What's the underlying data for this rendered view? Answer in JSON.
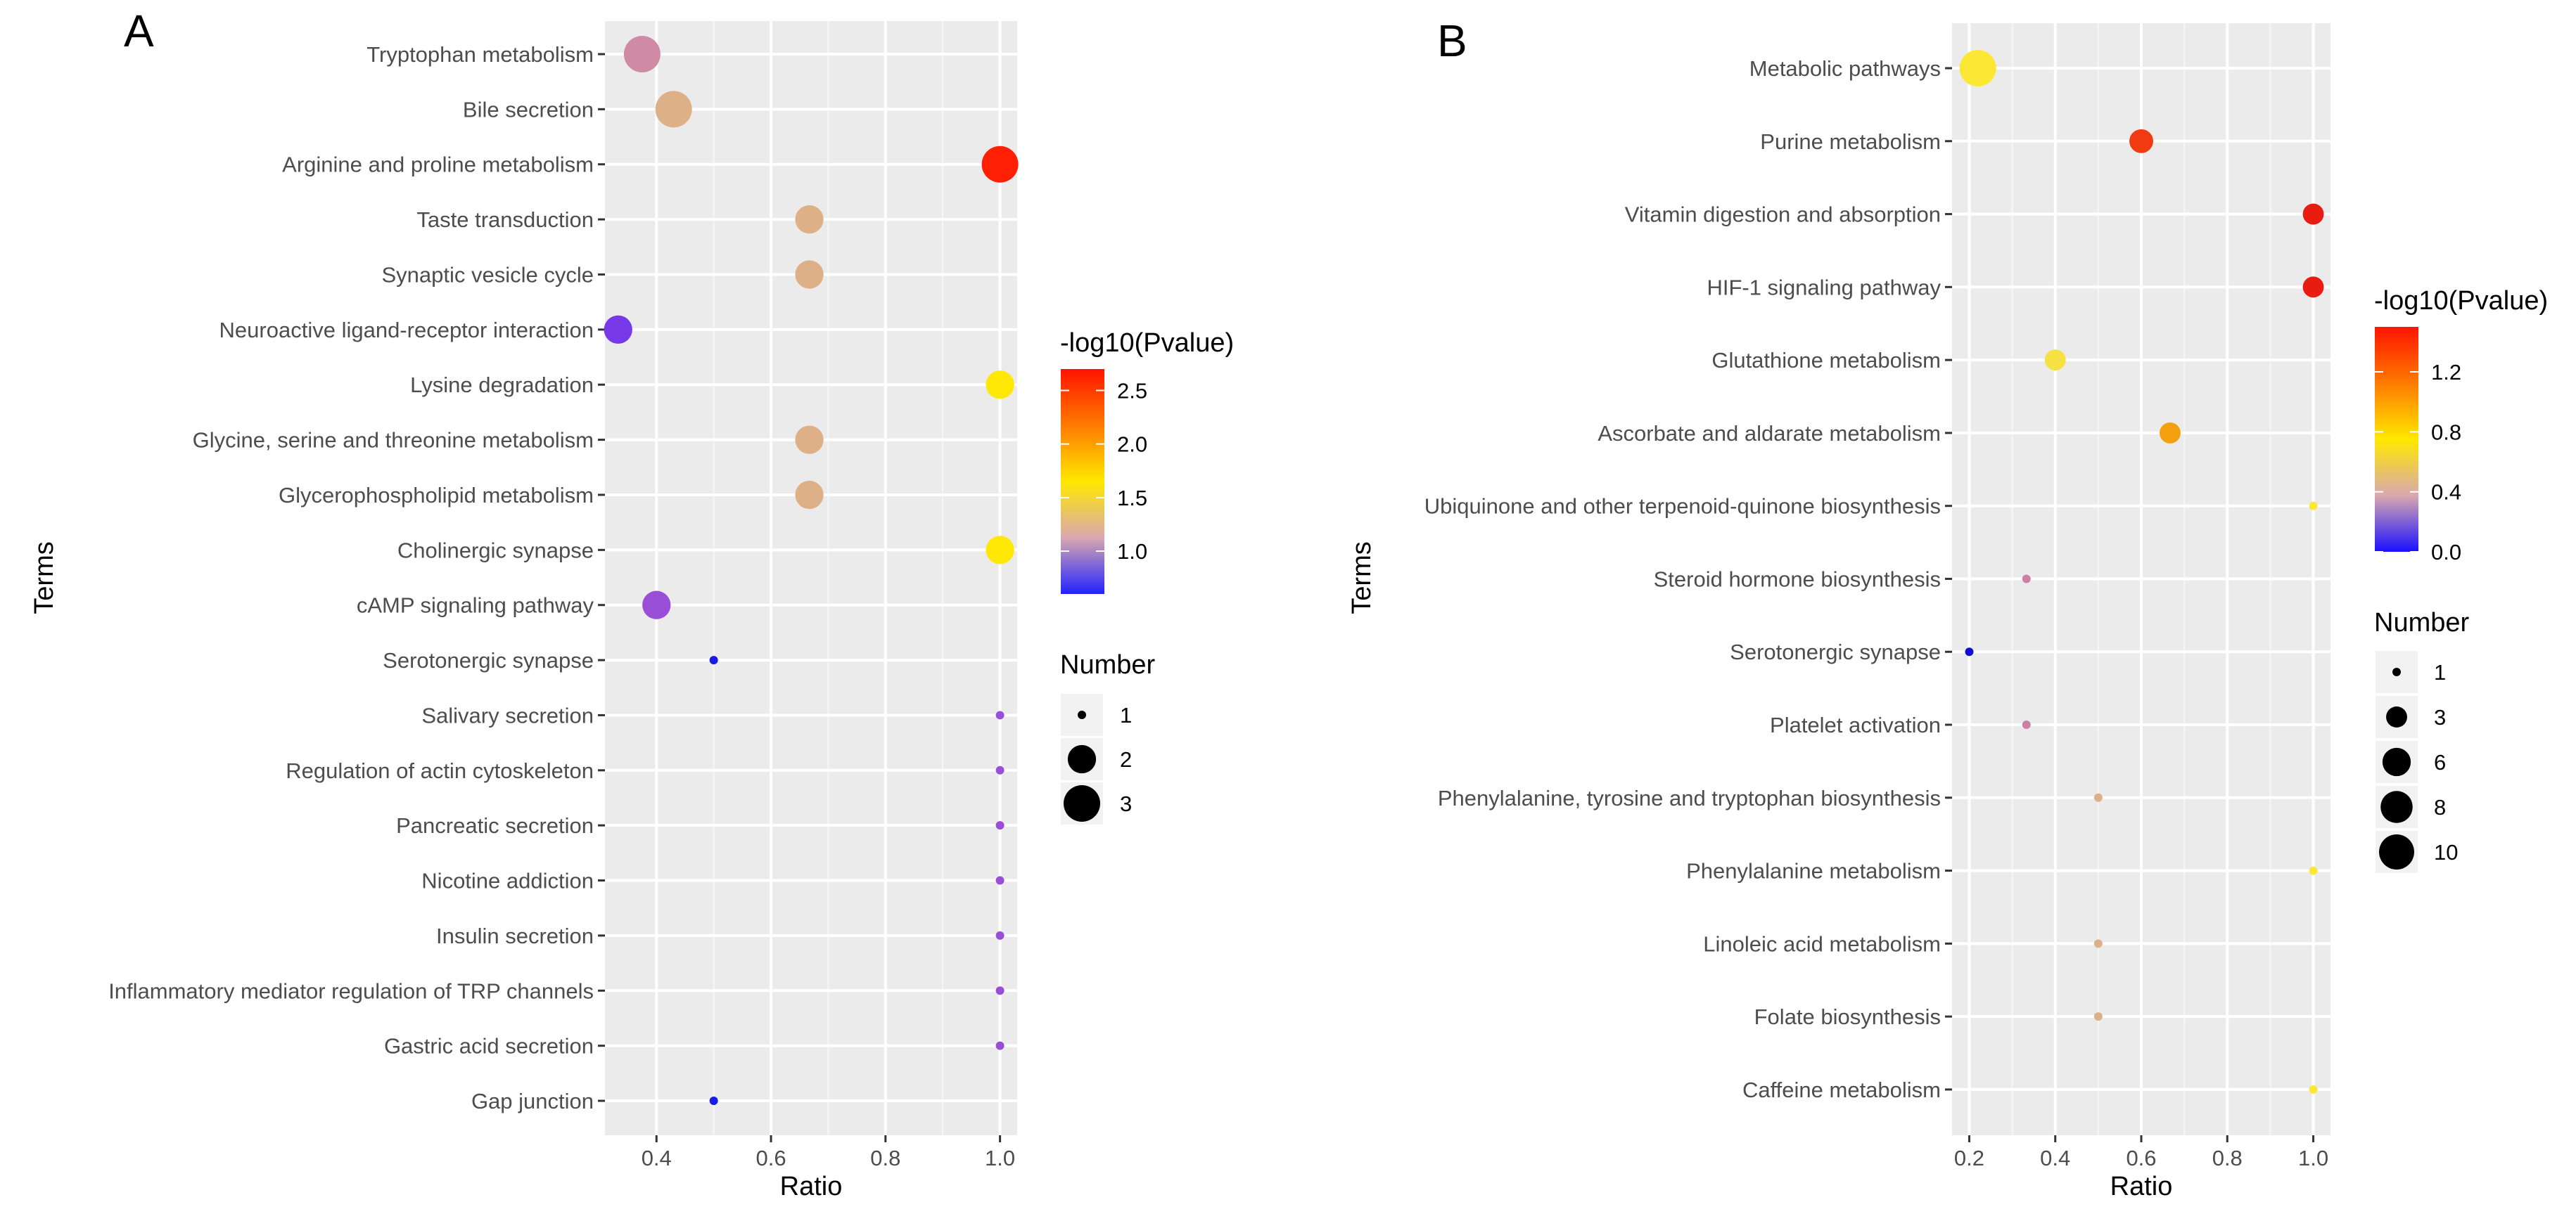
{
  "chart_data": [
    {
      "type": "scatter",
      "panel_label": "A",
      "xlabel": "Ratio",
      "ylabel": "Terms",
      "xlim": [
        0.31,
        1.03
      ],
      "xticks": [
        0.4,
        0.6,
        0.8,
        1.0
      ],
      "xtick_labels": [
        "0.4",
        "0.6",
        "0.8",
        "1.0"
      ],
      "grid": true,
      "legend_position": "right",
      "color_legend": {
        "title": "-log10(Pvalue)",
        "range": [
          0.6,
          2.7
        ],
        "ticks": [
          1.0,
          1.5,
          2.0,
          2.5
        ],
        "tick_labels": [
          "1.0",
          "1.5",
          "2.0",
          "2.5"
        ],
        "gradient": [
          "#2222ff",
          "#d9a8b0",
          "#ffe800",
          "#ff7a00",
          "#ff1400"
        ]
      },
      "size_legend": {
        "title": "Number",
        "values": [
          1,
          2,
          3
        ],
        "labels": [
          "1",
          "2",
          "3"
        ]
      },
      "points": [
        {
          "term": "Tryptophan metabolism",
          "ratio": 0.375,
          "number": 3,
          "log10p": 1.1,
          "color": "#cf8aa4"
        },
        {
          "term": "Bile secretion",
          "ratio": 0.43,
          "number": 3,
          "log10p": 1.3,
          "color": "#deb088"
        },
        {
          "term": "Arginine and proline metabolism",
          "ratio": 1.0,
          "number": 3,
          "log10p": 2.65,
          "color": "#fe1f05"
        },
        {
          "term": "Taste transduction",
          "ratio": 0.667,
          "number": 2,
          "log10p": 1.3,
          "color": "#deb088"
        },
        {
          "term": "Synaptic vesicle cycle",
          "ratio": 0.667,
          "number": 2,
          "log10p": 1.3,
          "color": "#deb088"
        },
        {
          "term": "Neuroactive ligand-receptor interaction",
          "ratio": 0.333,
          "number": 2,
          "log10p": 0.7,
          "color": "#7739e8"
        },
        {
          "term": "Lysine degradation",
          "ratio": 1.0,
          "number": 2,
          "log10p": 1.65,
          "color": "#ffe805"
        },
        {
          "term": "Glycine, serine and threonine metabolism",
          "ratio": 0.667,
          "number": 2,
          "log10p": 1.3,
          "color": "#deb088"
        },
        {
          "term": "Glycerophospholipid metabolism",
          "ratio": 0.667,
          "number": 2,
          "log10p": 1.3,
          "color": "#deb088"
        },
        {
          "term": "Cholinergic synapse",
          "ratio": 1.0,
          "number": 2,
          "log10p": 1.65,
          "color": "#ffe805"
        },
        {
          "term": "cAMP signaling pathway",
          "ratio": 0.4,
          "number": 2,
          "log10p": 0.8,
          "color": "#9a4ed8"
        },
        {
          "term": "Serotonergic synapse",
          "ratio": 0.5,
          "number": 1,
          "log10p": 0.6,
          "color": "#1a1ae8"
        },
        {
          "term": "Salivary secretion",
          "ratio": 1.0,
          "number": 1,
          "log10p": 0.8,
          "color": "#9a4ed8"
        },
        {
          "term": "Regulation of actin cytoskeleton",
          "ratio": 1.0,
          "number": 1,
          "log10p": 0.8,
          "color": "#9a4ed8"
        },
        {
          "term": "Pancreatic secretion",
          "ratio": 1.0,
          "number": 1,
          "log10p": 0.8,
          "color": "#9a4ed8"
        },
        {
          "term": "Nicotine addiction",
          "ratio": 1.0,
          "number": 1,
          "log10p": 0.8,
          "color": "#9a4ed8"
        },
        {
          "term": "Insulin secretion",
          "ratio": 1.0,
          "number": 1,
          "log10p": 0.8,
          "color": "#9a4ed8"
        },
        {
          "term": "Inflammatory mediator regulation of TRP channels",
          "ratio": 1.0,
          "number": 1,
          "log10p": 0.8,
          "color": "#9a4ed8"
        },
        {
          "term": "Gastric acid secretion",
          "ratio": 1.0,
          "number": 1,
          "log10p": 0.8,
          "color": "#9a4ed8"
        },
        {
          "term": "Gap junction",
          "ratio": 0.5,
          "number": 1,
          "log10p": 0.6,
          "color": "#1a1ae8"
        }
      ]
    },
    {
      "type": "scatter",
      "panel_label": "B",
      "xlabel": "Ratio",
      "ylabel": "Terms",
      "xlim": [
        0.16,
        1.04
      ],
      "xticks": [
        0.2,
        0.4,
        0.6,
        0.8,
        1.0
      ],
      "xtick_labels": [
        "0.2",
        "0.4",
        "0.6",
        "0.8",
        "1.0"
      ],
      "grid": true,
      "legend_position": "right",
      "color_legend": {
        "title": "-log10(Pvalue)",
        "range": [
          0.0,
          1.5
        ],
        "ticks": [
          0.0,
          0.4,
          0.8,
          1.2
        ],
        "tick_labels": [
          "0.0",
          "0.4",
          "0.8",
          "1.2"
        ],
        "gradient": [
          "#1a10ff",
          "#d9a8b0",
          "#ffe800",
          "#ff7a00",
          "#ff1400"
        ]
      },
      "size_legend": {
        "title": "Number",
        "values": [
          1,
          3,
          6,
          8,
          10
        ],
        "labels": [
          "1",
          "3",
          "6",
          "8",
          "10"
        ]
      },
      "points": [
        {
          "term": "Metabolic pathways",
          "ratio": 0.22,
          "number": 11,
          "log10p": 0.85,
          "color": "#fce834"
        },
        {
          "term": "Purine metabolism",
          "ratio": 0.6,
          "number": 4,
          "log10p": 1.35,
          "color": "#ef3a12"
        },
        {
          "term": "Vitamin digestion and absorption",
          "ratio": 1.0,
          "number": 3,
          "log10p": 1.45,
          "color": "#e81c10"
        },
        {
          "term": "HIF-1 signaling pathway",
          "ratio": 1.0,
          "number": 3,
          "log10p": 1.45,
          "color": "#e81c10"
        },
        {
          "term": "Glutathione metabolism",
          "ratio": 0.4,
          "number": 3,
          "log10p": 0.85,
          "color": "#f6e044"
        },
        {
          "term": "Ascorbate and aldarate metabolism",
          "ratio": 0.667,
          "number": 3,
          "log10p": 1.15,
          "color": "#f4a00e"
        },
        {
          "term": "Ubiquinone and other terpenoid-quinone biosynthesis",
          "ratio": 1.0,
          "number": 1,
          "log10p": 0.85,
          "color": "#fce834"
        },
        {
          "term": "Steroid hormone biosynthesis",
          "ratio": 0.333,
          "number": 1,
          "log10p": 0.4,
          "color": "#cc80a8"
        },
        {
          "term": "Serotonergic synapse",
          "ratio": 0.2,
          "number": 1,
          "log10p": 0.0,
          "color": "#1010d0"
        },
        {
          "term": "Platelet activation",
          "ratio": 0.333,
          "number": 1,
          "log10p": 0.4,
          "color": "#cc80a8"
        },
        {
          "term": "Phenylalanine, tyrosine and tryptophan biosynthesis",
          "ratio": 0.5,
          "number": 1,
          "log10p": 0.55,
          "color": "#deb088"
        },
        {
          "term": "Phenylalanine metabolism",
          "ratio": 1.0,
          "number": 1,
          "log10p": 0.85,
          "color": "#fce834"
        },
        {
          "term": "Linoleic acid metabolism",
          "ratio": 0.5,
          "number": 1,
          "log10p": 0.55,
          "color": "#deb088"
        },
        {
          "term": "Folate biosynthesis",
          "ratio": 0.5,
          "number": 1,
          "log10p": 0.55,
          "color": "#deb088"
        },
        {
          "term": "Caffeine metabolism",
          "ratio": 1.0,
          "number": 1,
          "log10p": 0.85,
          "color": "#fce834"
        }
      ]
    }
  ]
}
